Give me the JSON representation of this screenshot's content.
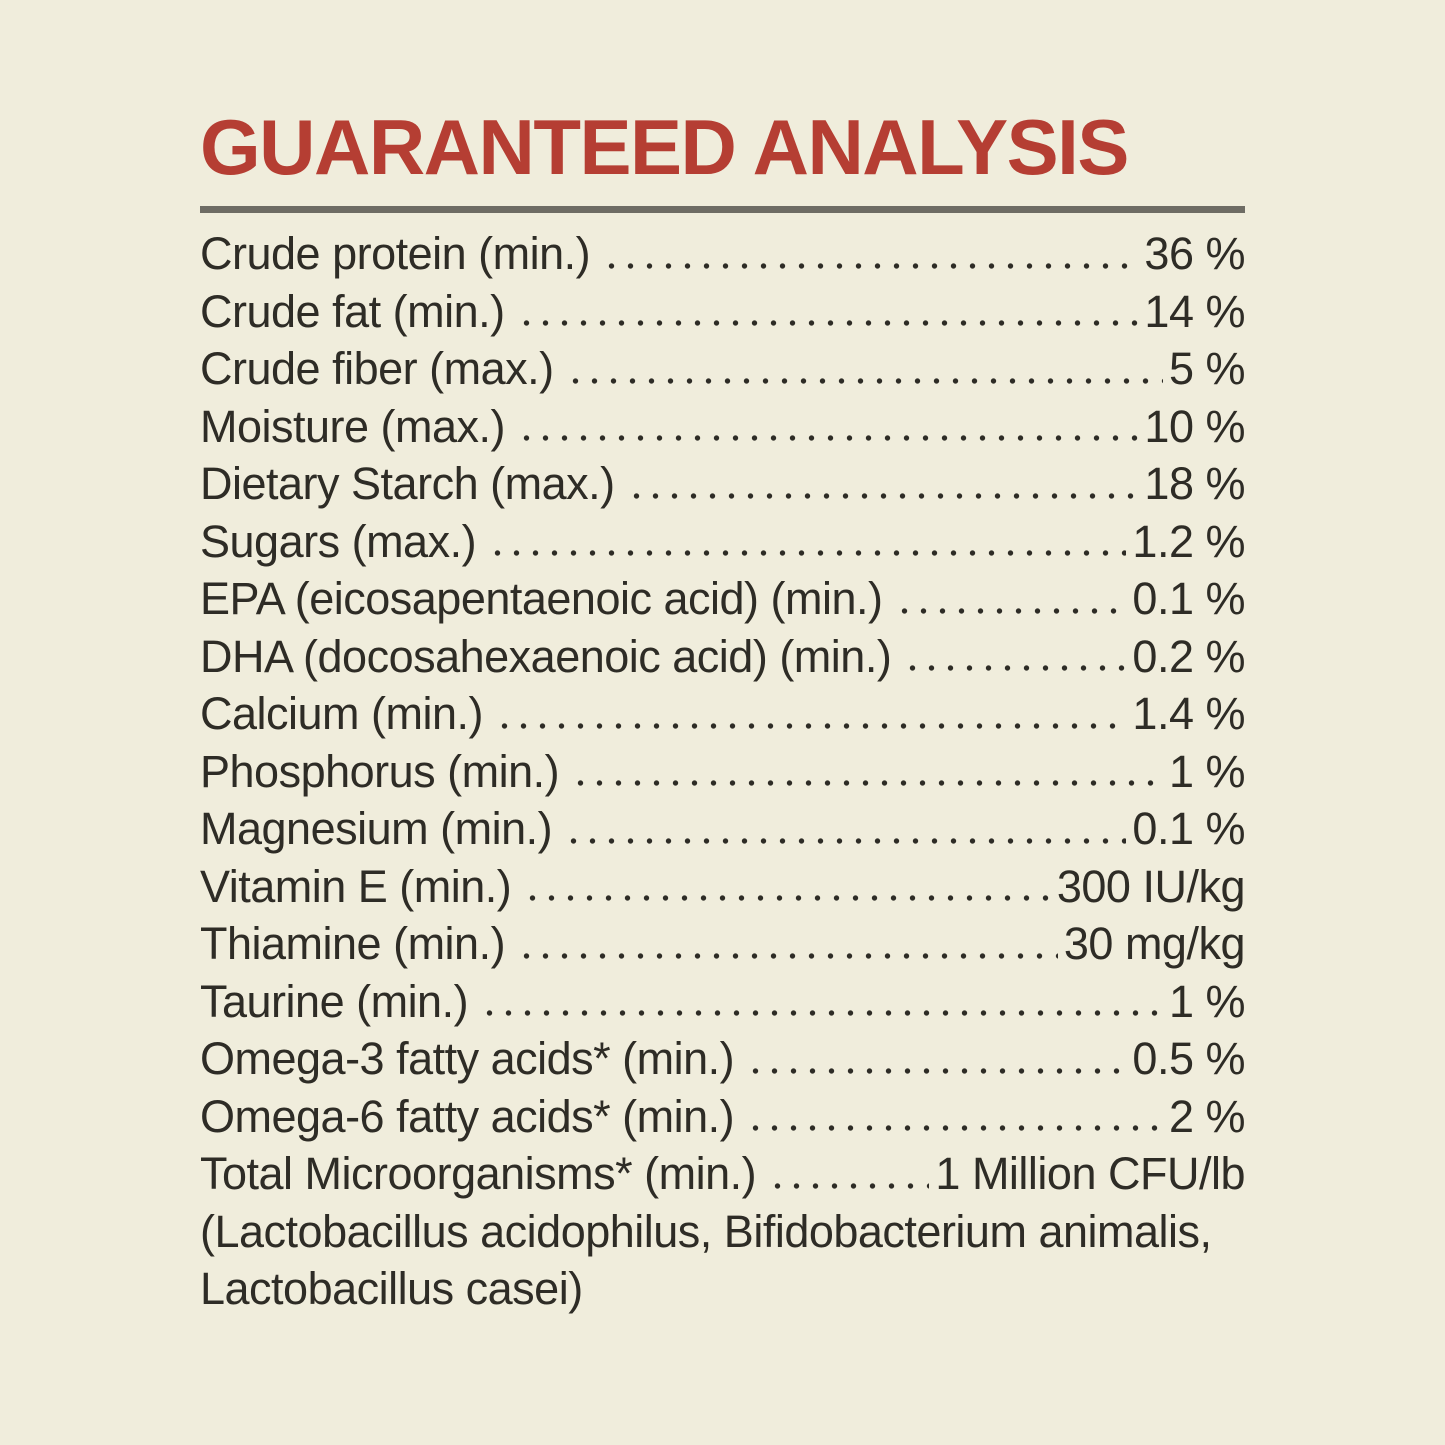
{
  "title": "GUARANTEED ANALYSIS",
  "colors": {
    "background": "#F0EDDC",
    "title": "#B53E33",
    "text": "#2E2C26",
    "rule": "#6E6C64"
  },
  "analysis": {
    "rows": [
      {
        "label": "Crude protein (min.)",
        "value": "36 %"
      },
      {
        "label": "Crude fat (min.)",
        "value": "14 %"
      },
      {
        "label": "Crude fiber (max.)",
        "value": "5 %"
      },
      {
        "label": "Moisture (max.)",
        "value": "10 %"
      },
      {
        "label": "Dietary Starch (max.)",
        "value": "18 %"
      },
      {
        "label": "Sugars (max.)",
        "value": "1.2 %"
      },
      {
        "label": "EPA (eicosapentaenoic acid) (min.)",
        "value": "0.1 %"
      },
      {
        "label": "DHA (docosahexaenoic acid) (min.)",
        "value": "0.2 %"
      },
      {
        "label": "Calcium (min.)",
        "value": "1.4 %"
      },
      {
        "label": "Phosphorus (min.)",
        "value": "1 %"
      },
      {
        "label": "Magnesium (min.)",
        "value": "0.1 %"
      },
      {
        "label": "Vitamin E (min.)",
        "value": "300 IU/kg"
      },
      {
        "label": "Thiamine (min.)",
        "value": "30 mg/kg"
      },
      {
        "label": "Taurine (min.)",
        "value": "1 %"
      },
      {
        "label": "Omega-3 fatty acids* (min.)",
        "value": "0.5 %"
      },
      {
        "label": "Omega-6 fatty acids* (min.)",
        "value": "2 %"
      },
      {
        "label": "Total Microorganisms* (min.)",
        "value": "1 Million CFU/lb"
      }
    ],
    "footnote_lines": [
      "(Lactobacillus acidophilus, Bifidobacterium animalis,",
      "Lactobacillus casei)"
    ]
  }
}
